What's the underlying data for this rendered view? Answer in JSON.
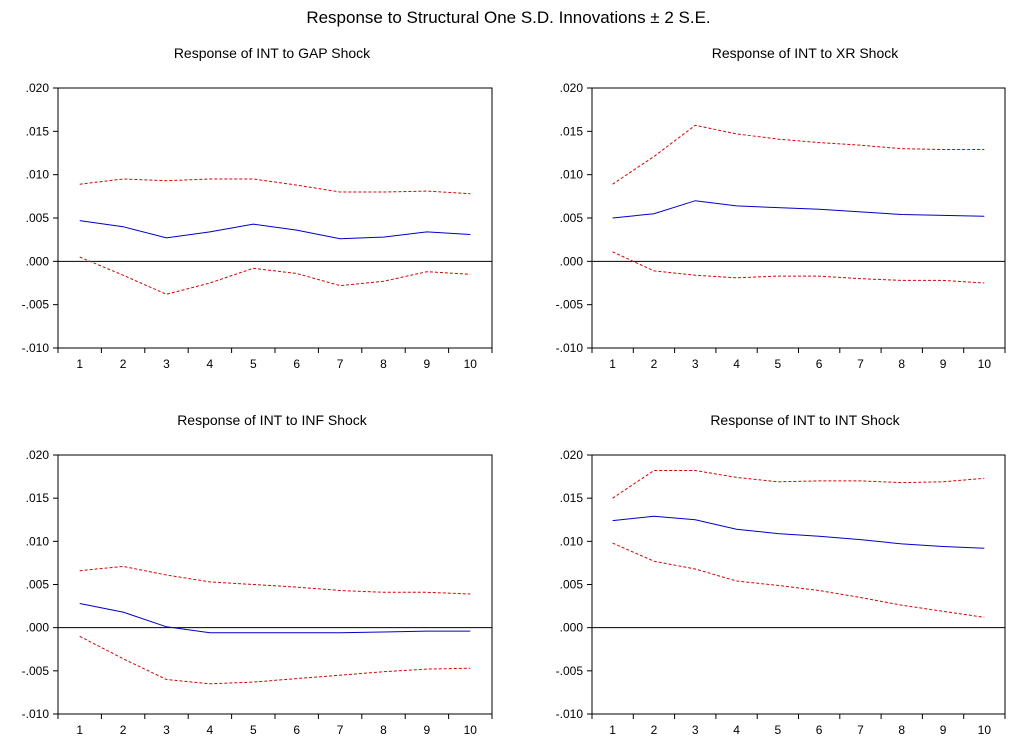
{
  "figure_title": "Response to Structural One S.D. Innovations ± 2 S.E.",
  "colors": {
    "response": "#0000cc",
    "bands": "#dd0000",
    "zero_line": "#000000"
  },
  "chart_data": [
    {
      "type": "line",
      "title": "Response of INT to GAP Shock",
      "x": [
        1,
        2,
        3,
        4,
        5,
        6,
        7,
        8,
        9,
        10
      ],
      "ylim": [
        -0.01,
        0.02
      ],
      "yticks": [
        ".020",
        ".015",
        ".010",
        ".005",
        ".000",
        "-.005",
        "-.010"
      ],
      "grid": false,
      "series": [
        {
          "role": "response",
          "values": [
            0.0047,
            0.004,
            0.0027,
            0.0034,
            0.0043,
            0.0036,
            0.0026,
            0.0028,
            0.0034,
            0.0031
          ]
        },
        {
          "role": "upper",
          "values": [
            0.0089,
            0.0095,
            0.0093,
            0.0095,
            0.0095,
            0.0088,
            0.008,
            0.008,
            0.0081,
            0.0078
          ]
        },
        {
          "role": "lower",
          "values": [
            0.0005,
            -0.0016,
            -0.0038,
            -0.0025,
            -0.0008,
            -0.0014,
            -0.0028,
            -0.0023,
            -0.0012,
            -0.0015
          ]
        }
      ]
    },
    {
      "type": "line",
      "title": "Response of INT to XR Shock",
      "x": [
        1,
        2,
        3,
        4,
        5,
        6,
        7,
        8,
        9,
        10
      ],
      "ylim": [
        -0.01,
        0.02
      ],
      "yticks": [
        ".020",
        ".015",
        ".010",
        ".005",
        ".000",
        "-.005",
        "-.010"
      ],
      "grid": false,
      "series": [
        {
          "role": "response",
          "values": [
            0.005,
            0.0055,
            0.007,
            0.0064,
            0.0062,
            0.006,
            0.0057,
            0.0054,
            0.0053,
            0.0052
          ]
        },
        {
          "role": "upper",
          "values": [
            0.0089,
            0.0121,
            0.0157,
            0.0147,
            0.0141,
            0.0137,
            0.0134,
            0.013,
            0.0129,
            0.0129
          ]
        },
        {
          "role": "lower",
          "values": [
            0.0011,
            -0.0011,
            -0.0016,
            -0.0019,
            -0.0017,
            -0.0017,
            -0.002,
            -0.0022,
            -0.0022,
            -0.0025
          ]
        }
      ]
    },
    {
      "type": "line",
      "title": "Response of INT to INF Shock",
      "x": [
        1,
        2,
        3,
        4,
        5,
        6,
        7,
        8,
        9,
        10
      ],
      "ylim": [
        -0.01,
        0.02
      ],
      "yticks": [
        ".020",
        ".015",
        ".010",
        ".005",
        ".000",
        "-.005",
        "-.010"
      ],
      "grid": false,
      "series": [
        {
          "role": "response",
          "values": [
            0.0028,
            0.0018,
            0.0001,
            -0.0006,
            -0.0006,
            -0.0006,
            -0.0006,
            -0.0005,
            -0.0004,
            -0.0004
          ]
        },
        {
          "role": "upper",
          "values": [
            0.0066,
            0.0071,
            0.0061,
            0.0053,
            0.005,
            0.0047,
            0.0043,
            0.0041,
            0.0041,
            0.0039
          ]
        },
        {
          "role": "lower",
          "values": [
            -0.001,
            -0.0036,
            -0.006,
            -0.0065,
            -0.0063,
            -0.0059,
            -0.0055,
            -0.0051,
            -0.0048,
            -0.0047
          ]
        }
      ]
    },
    {
      "type": "line",
      "title": "Response of INT to INT Shock",
      "x": [
        1,
        2,
        3,
        4,
        5,
        6,
        7,
        8,
        9,
        10
      ],
      "ylim": [
        -0.01,
        0.02
      ],
      "yticks": [
        ".020",
        ".015",
        ".010",
        ".005",
        ".000",
        "-.005",
        "-.010"
      ],
      "grid": false,
      "series": [
        {
          "role": "response",
          "values": [
            0.0124,
            0.0129,
            0.0125,
            0.0114,
            0.0109,
            0.0106,
            0.0102,
            0.0097,
            0.0094,
            0.0092
          ]
        },
        {
          "role": "upper",
          "values": [
            0.015,
            0.0182,
            0.0182,
            0.0174,
            0.0169,
            0.017,
            0.017,
            0.0168,
            0.0169,
            0.0173
          ]
        },
        {
          "role": "lower",
          "values": [
            0.0098,
            0.0077,
            0.0068,
            0.0054,
            0.0049,
            0.0043,
            0.0035,
            0.0026,
            0.0019,
            0.0012
          ]
        }
      ]
    }
  ]
}
